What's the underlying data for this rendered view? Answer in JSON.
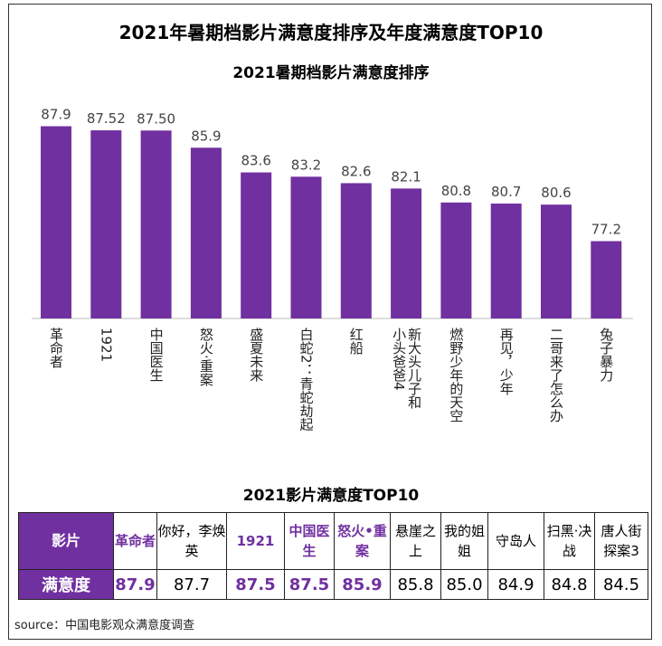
{
  "title": "2021年暑期档影片满意度排序及年度满意度TOP10",
  "chart_data": {
    "type": "bar",
    "title": "2021暑期档影片满意度排序",
    "categories": [
      "革命者",
      "1921",
      "中国医生",
      "怒火·重案",
      "盛夏未来",
      "白蛇2：青蛇劫起",
      "红船",
      "新大头儿子和小头爸爸4",
      "燃野少年的天空",
      "再见，少年",
      "二哥来了怎么办",
      "兔子暴力"
    ],
    "value_labels": [
      "87.9",
      "87.52",
      "87.50",
      "85.9",
      "83.6",
      "83.2",
      "82.6",
      "82.1",
      "80.8",
      "80.7",
      "80.6",
      "77.2"
    ],
    "values": [
      87.9,
      87.52,
      87.5,
      85.9,
      83.6,
      83.2,
      82.6,
      82.1,
      80.8,
      80.7,
      80.6,
      77.2
    ],
    "ylim": [
      70,
      90
    ],
    "color": "#7030a0"
  },
  "table": {
    "title": "2021影片满意度TOP10",
    "header_film": "影片",
    "header_score": "满意度",
    "films": [
      "革命者",
      "你好，李焕英",
      "1921",
      "中国医生",
      "怒火•重案",
      "悬崖之上",
      "我的姐姐",
      "守岛人",
      "扫黑·决战",
      "唐人街探案3"
    ],
    "scores": [
      "87.9",
      "87.7",
      "87.5",
      "87.5",
      "85.9",
      "85.8",
      "85.0",
      "84.9",
      "84.8",
      "84.5"
    ],
    "highlighted": [
      true,
      false,
      true,
      true,
      true,
      false,
      false,
      false,
      false,
      false
    ]
  },
  "source": "source：中国电影观众满意度调查"
}
